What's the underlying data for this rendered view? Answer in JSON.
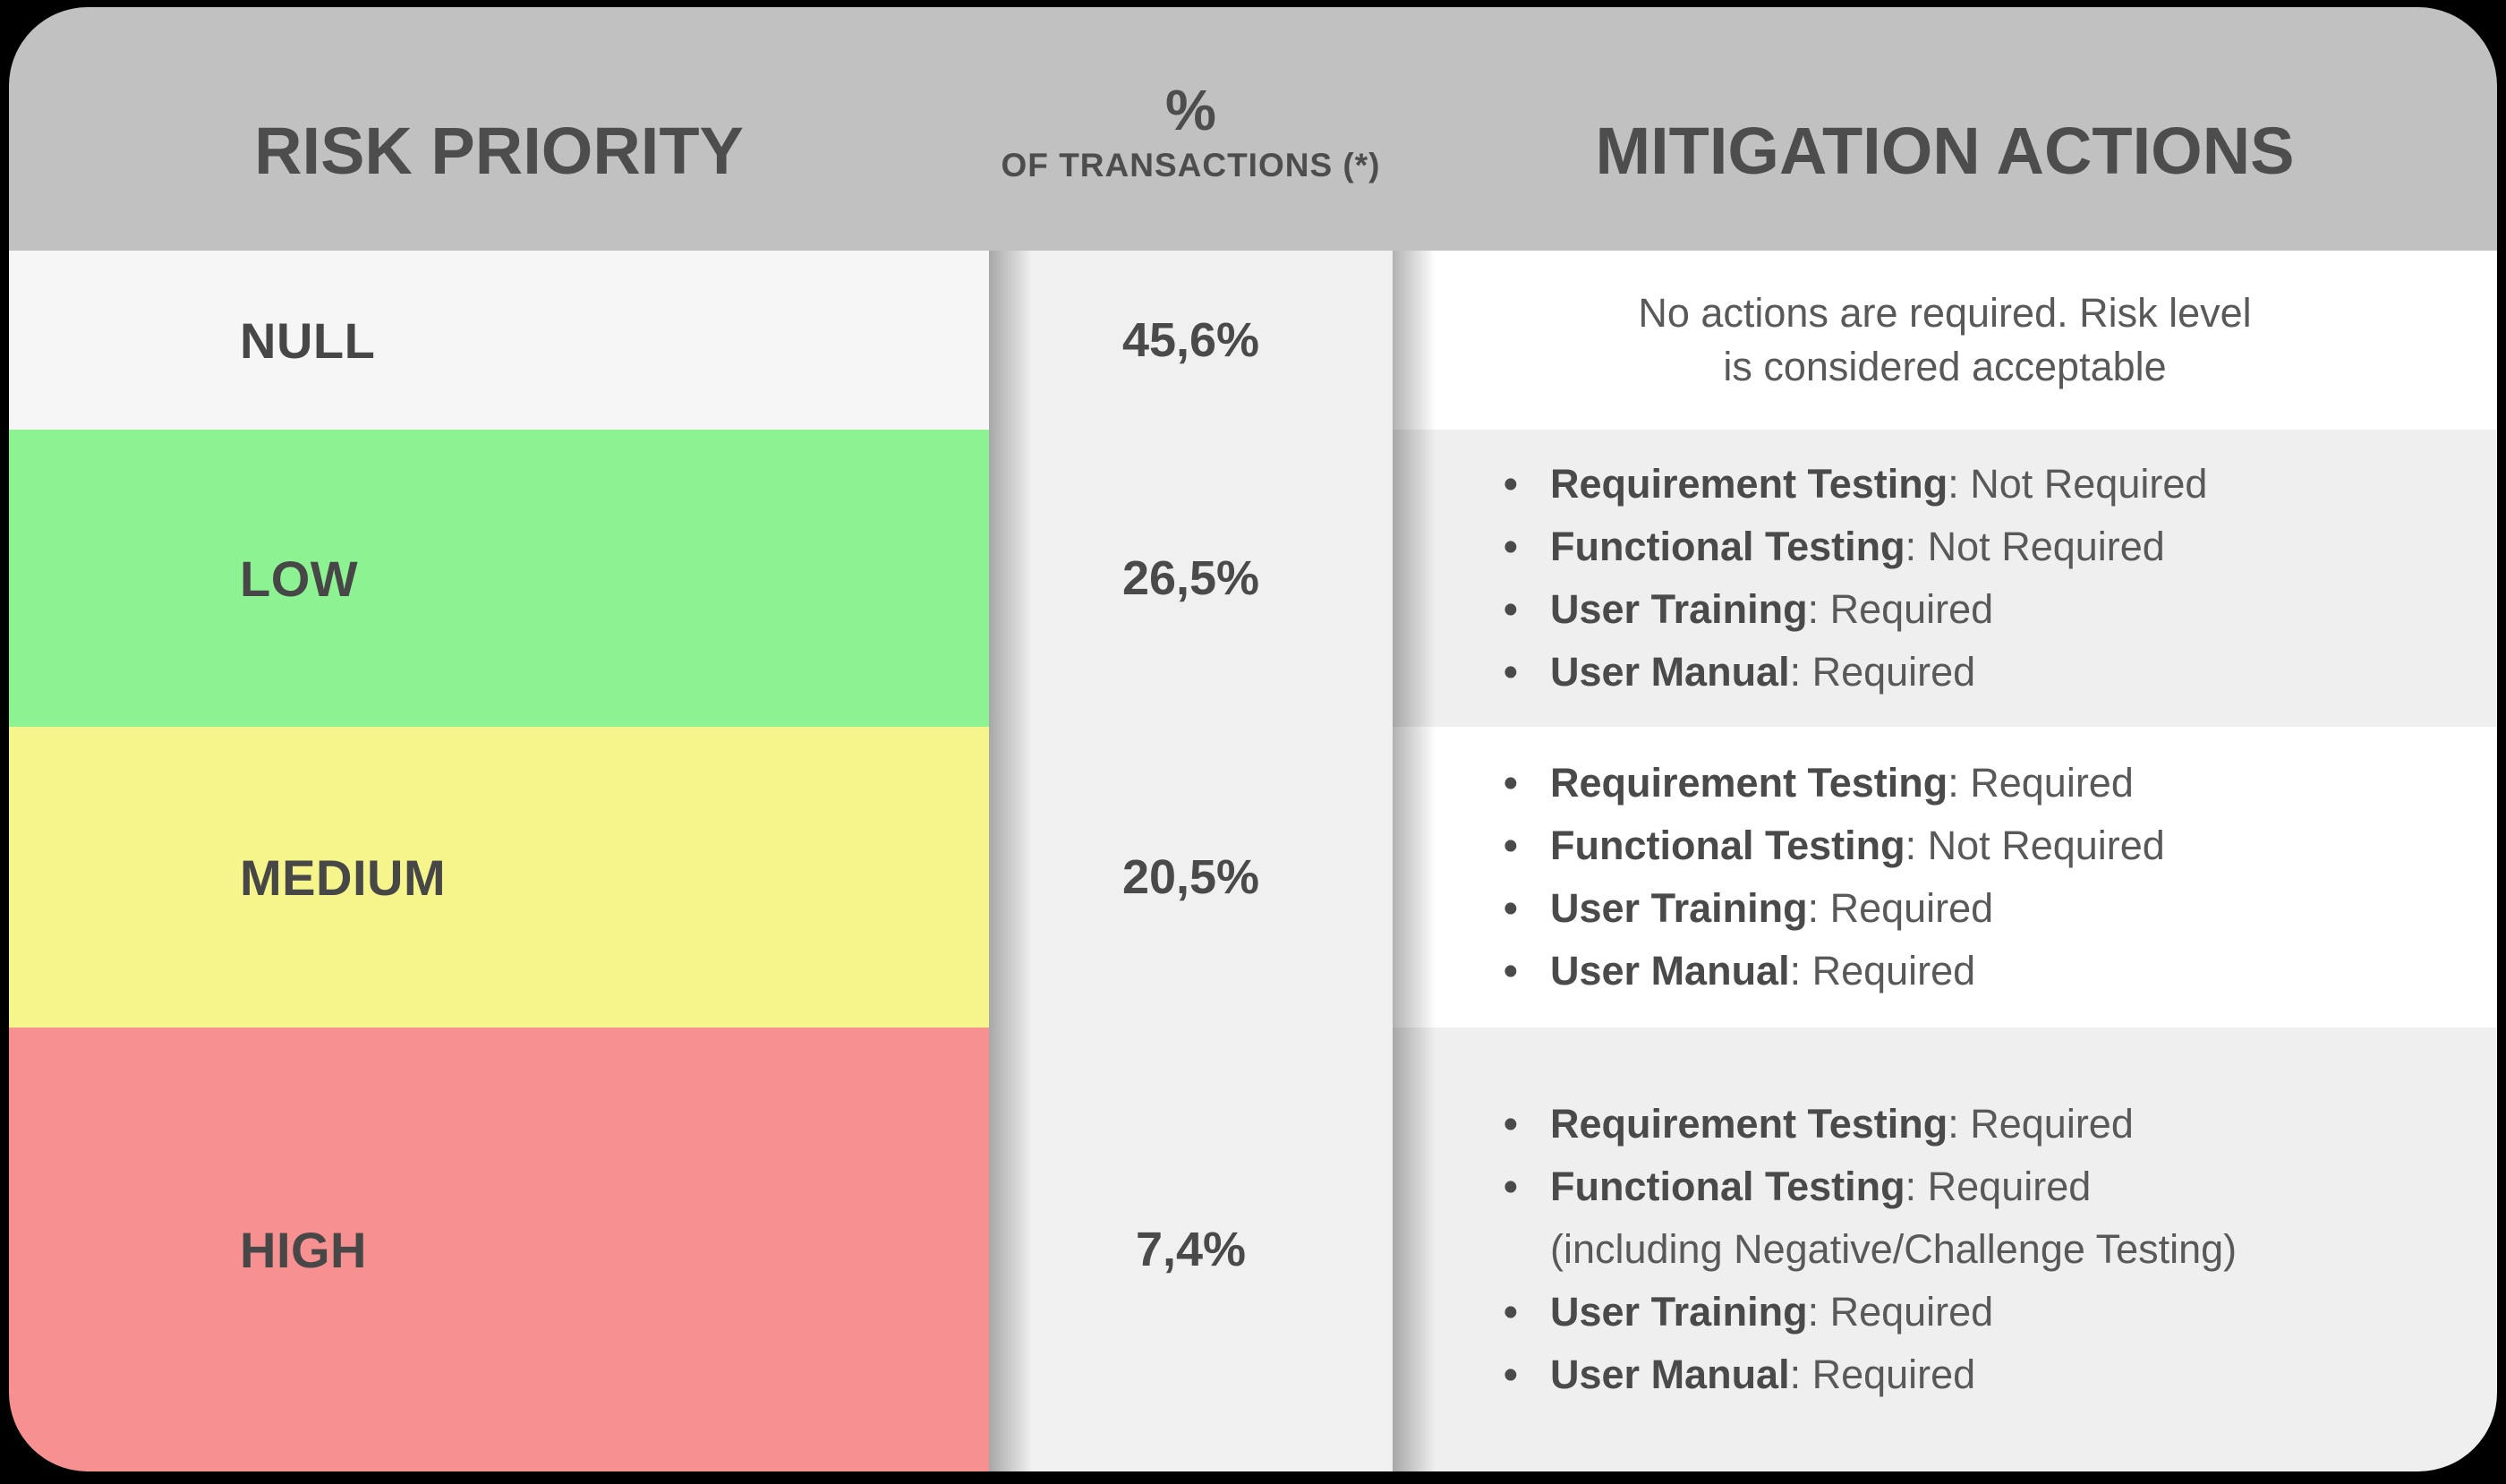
{
  "header": {
    "risk_priority": "RISK PRIORITY",
    "percent_symbol": "%",
    "of_transactions": "OF TRANSACTIONS (*)",
    "mitigation_actions": "MITIGATION ACTIONS"
  },
  "colors": {
    "page_bg": "#000000",
    "header_bg": "#c1c1c1",
    "percent_col_bg": "#f0f0f0",
    "panel_white": "#ffffff",
    "panel_gray": "#efefef",
    "text_dark": "#4a4a4a",
    "null_row": "#f6f6f6",
    "low_row": "#8df291",
    "medium_row": "#f5f58c",
    "high_row": "#f79090"
  },
  "chart_data": {
    "type": "table",
    "columns": [
      "RISK PRIORITY",
      "% OF TRANSACTIONS (*)",
      "MITIGATION ACTIONS"
    ],
    "rows": [
      {
        "level": "NULL",
        "percent": "45,6%",
        "row_color": "#f6f6f6",
        "actions_lines": [
          "No actions are required. Risk level",
          "is considered acceptable"
        ],
        "actions": []
      },
      {
        "level": "LOW",
        "percent": "26,5%",
        "row_color": "#8df291",
        "actions": [
          {
            "label": "Requirement Testing",
            "value": "Not Required"
          },
          {
            "label": "Functional Testing",
            "value": "Not Required"
          },
          {
            "label": "User Training",
            "value": "Required"
          },
          {
            "label": "User Manual",
            "value": "Required"
          }
        ]
      },
      {
        "level": "MEDIUM",
        "percent": "20,5%",
        "row_color": "#f5f58c",
        "actions": [
          {
            "label": "Requirement Testing",
            "value": "Required"
          },
          {
            "label": "Functional Testing",
            "value": "Not Required"
          },
          {
            "label": "User Training",
            "value": "Required"
          },
          {
            "label": "User Manual",
            "value": "Required"
          }
        ]
      },
      {
        "level": "HIGH",
        "percent": "7,4%",
        "row_color": "#f79090",
        "actions": [
          {
            "label": "Requirement Testing",
            "value": "Required"
          },
          {
            "label": "Functional Testing",
            "value": "Required",
            "note": "(including Negative/Challenge Testing)"
          },
          {
            "label": "User Training",
            "value": "Required"
          },
          {
            "label": "User Manual",
            "value": "Required"
          }
        ]
      }
    ]
  }
}
